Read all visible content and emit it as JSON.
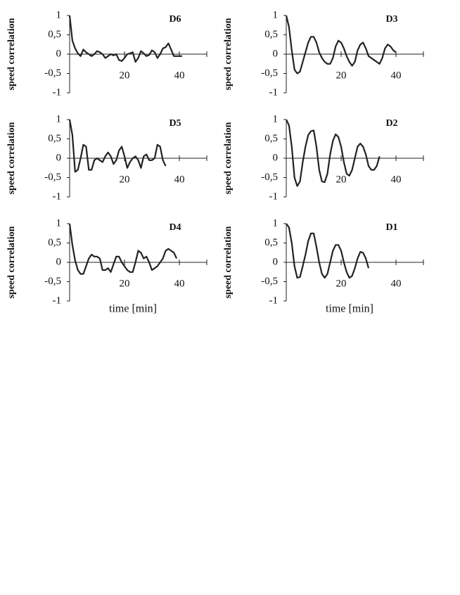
{
  "chart_data": [
    {
      "type": "line",
      "label": "D6",
      "ylabel": "speed correlation",
      "color": "#222",
      "x": [
        0,
        1,
        2,
        3,
        4,
        5,
        6,
        7,
        8,
        9,
        10,
        11,
        12,
        13,
        14,
        15,
        16,
        17,
        18,
        19,
        20,
        21,
        22,
        23,
        24,
        25,
        26,
        27,
        28,
        29,
        30,
        31,
        32,
        33,
        34,
        35,
        36,
        37,
        38,
        39,
        40,
        41
      ],
      "values": [
        1,
        0.35,
        0.15,
        0.02,
        -0.05,
        0.12,
        0.05,
        0,
        -0.05,
        0,
        0.08,
        0.05,
        0,
        -0.1,
        -0.05,
        0,
        -0.03,
        0,
        -0.15,
        -0.18,
        -0.1,
        0,
        0.02,
        0.05,
        -0.2,
        -0.1,
        0.08,
        0.02,
        -0.05,
        -0.02,
        0.1,
        0.05,
        -0.1,
        0,
        0.15,
        0.18,
        0.28,
        0.12,
        -0.05,
        -0.05,
        -0.05,
        -0.05
      ],
      "xlim": [
        0,
        50
      ],
      "xticks": [
        20,
        40
      ],
      "ylim": [
        -1,
        1
      ],
      "yticks": [
        -1,
        {
          "value": -0.5,
          "label": "-0,5"
        },
        0,
        {
          "value": 0.5,
          "label": "0,5"
        },
        1
      ]
    },
    {
      "type": "line",
      "label": "D3",
      "ylabel": "speed correlation",
      "color": "#222",
      "x": [
        0,
        1,
        2,
        3,
        4,
        5,
        6,
        7,
        8,
        9,
        10,
        11,
        12,
        13,
        14,
        15,
        16,
        17,
        18,
        19,
        20,
        21,
        22,
        23,
        24,
        25,
        26,
        27,
        28,
        29,
        30,
        31,
        32,
        33,
        34,
        35,
        36,
        37,
        38,
        39,
        40
      ],
      "values": [
        1,
        0.7,
        0.1,
        -0.4,
        -0.5,
        -0.45,
        -0.2,
        0.05,
        0.3,
        0.45,
        0.45,
        0.3,
        0.05,
        -0.1,
        -0.2,
        -0.25,
        -0.25,
        -0.1,
        0.2,
        0.35,
        0.3,
        0.15,
        -0.05,
        -0.2,
        -0.3,
        -0.2,
        0.1,
        0.25,
        0.3,
        0.15,
        -0.05,
        -0.1,
        -0.15,
        -0.2,
        -0.25,
        -0.1,
        0.15,
        0.25,
        0.2,
        0.1,
        0.05
      ],
      "xlim": [
        0,
        50
      ],
      "xticks": [
        20,
        40
      ],
      "ylim": [
        -1,
        1
      ],
      "yticks": [
        -1,
        {
          "value": -0.5,
          "label": "-0,5"
        },
        0,
        {
          "value": 0.5,
          "label": "0,5"
        },
        1
      ]
    },
    {
      "type": "line",
      "label": "D5",
      "ylabel": "speed correlation",
      "color": "#222",
      "x": [
        0,
        1,
        2,
        3,
        4,
        5,
        6,
        7,
        8,
        9,
        10,
        11,
        12,
        13,
        14,
        15,
        16,
        17,
        18,
        19,
        20,
        21,
        22,
        23,
        24,
        25,
        26,
        27,
        28,
        29,
        30,
        31,
        32,
        33,
        34,
        35
      ],
      "values": [
        1,
        0.6,
        -0.35,
        -0.3,
        0,
        0.35,
        0.3,
        -0.3,
        -0.3,
        -0.05,
        0,
        -0.05,
        -0.1,
        0.05,
        0.15,
        0.05,
        -0.15,
        -0.05,
        0.2,
        0.3,
        0.05,
        -0.25,
        -0.1,
        0,
        0.05,
        -0.05,
        -0.25,
        0.05,
        0.1,
        -0.05,
        -0.05,
        0,
        0.35,
        0.3,
        -0.05,
        -0.2
      ],
      "xlim": [
        0,
        50
      ],
      "xticks": [
        20,
        40
      ],
      "ylim": [
        -1,
        1
      ],
      "yticks": [
        -1,
        {
          "value": -0.5,
          "label": "-0,5"
        },
        0,
        {
          "value": 0.5,
          "label": "0,5"
        },
        1
      ]
    },
    {
      "type": "line",
      "label": "D2",
      "ylabel": "speed correlation",
      "color": "#222",
      "x": [
        0,
        1,
        2,
        3,
        4,
        5,
        6,
        7,
        8,
        9,
        10,
        11,
        12,
        13,
        14,
        15,
        16,
        17,
        18,
        19,
        20,
        21,
        22,
        23,
        24,
        25,
        26,
        27,
        28,
        29,
        30,
        31,
        32,
        33,
        34
      ],
      "values": [
        1,
        0.85,
        0.3,
        -0.5,
        -0.72,
        -0.6,
        -0.1,
        0.3,
        0.6,
        0.7,
        0.72,
        0.3,
        -0.3,
        -0.6,
        -0.62,
        -0.4,
        0.1,
        0.45,
        0.62,
        0.55,
        0.3,
        -0.1,
        -0.4,
        -0.45,
        -0.3,
        0,
        0.3,
        0.38,
        0.3,
        0.1,
        -0.2,
        -0.3,
        -0.3,
        -0.2,
        0.05
      ],
      "xlim": [
        0,
        50
      ],
      "xticks": [
        20,
        40
      ],
      "ylim": [
        -1,
        1
      ],
      "yticks": [
        -1,
        {
          "value": -0.5,
          "label": "-0,5"
        },
        0,
        {
          "value": 0.5,
          "label": "0,5"
        },
        1
      ]
    },
    {
      "type": "line",
      "label": "D4",
      "ylabel": "speed correlation",
      "xlabel": "time [min]",
      "color": "#222",
      "x": [
        0,
        1,
        2,
        3,
        4,
        5,
        6,
        7,
        8,
        9,
        10,
        11,
        12,
        13,
        14,
        15,
        16,
        17,
        18,
        19,
        20,
        21,
        22,
        23,
        24,
        25,
        26,
        27,
        28,
        29,
        30,
        31,
        32,
        33,
        34,
        35,
        36,
        37,
        38,
        39
      ],
      "values": [
        1,
        0.45,
        0.05,
        -0.2,
        -0.3,
        -0.3,
        -0.1,
        0.1,
        0.2,
        0.15,
        0.15,
        0.1,
        -0.2,
        -0.2,
        -0.15,
        -0.25,
        -0.05,
        0.15,
        0.15,
        0,
        -0.1,
        -0.2,
        -0.25,
        -0.25,
        0,
        0.3,
        0.25,
        0.1,
        0.15,
        0,
        -0.2,
        -0.15,
        -0.1,
        0,
        0.1,
        0.3,
        0.35,
        0.3,
        0.25,
        0.1
      ],
      "xlim": [
        0,
        50
      ],
      "xticks": [
        20,
        40
      ],
      "ylim": [
        -1,
        1
      ],
      "yticks": [
        -1,
        {
          "value": -0.5,
          "label": "-0,5"
        },
        0,
        {
          "value": 0.5,
          "label": "0,5"
        },
        1
      ]
    },
    {
      "type": "line",
      "label": "D1",
      "ylabel": "speed correlation",
      "xlabel": "time [min]",
      "color": "#222",
      "x": [
        0,
        1,
        2,
        3,
        4,
        5,
        6,
        7,
        8,
        9,
        10,
        11,
        12,
        13,
        14,
        15,
        16,
        17,
        18,
        19,
        20,
        21,
        22,
        23,
        24,
        25,
        26,
        27,
        28,
        29,
        30
      ],
      "values": [
        1,
        0.9,
        0.5,
        -0.1,
        -0.4,
        -0.38,
        -0.1,
        0.2,
        0.55,
        0.75,
        0.75,
        0.4,
        0,
        -0.3,
        -0.4,
        -0.3,
        0,
        0.3,
        0.45,
        0.45,
        0.3,
        0,
        -0.25,
        -0.4,
        -0.35,
        -0.15,
        0.1,
        0.27,
        0.25,
        0.1,
        -0.15
      ],
      "xlim": [
        0,
        50
      ],
      "xticks": [
        20,
        40
      ],
      "ylim": [
        -1,
        1
      ],
      "yticks": [
        -1,
        {
          "value": -0.5,
          "label": "-0,5"
        },
        0,
        {
          "value": 0.5,
          "label": "0,5"
        },
        1
      ]
    }
  ]
}
